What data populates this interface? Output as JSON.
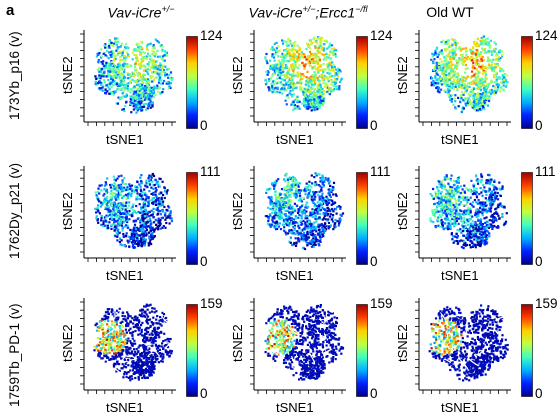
{
  "panel_label": "a",
  "columns": [
    {
      "title": "Vav-iCre",
      "sup": "+/−",
      "title2": "",
      "sup2": "",
      "italic": true
    },
    {
      "title": "Vav-iCre",
      "sup": "+/−",
      "title2": ";Ercc1",
      "sup2": "−/fl",
      "italic": true
    },
    {
      "title": "Old WT",
      "sup": "",
      "title2": "",
      "sup2": "",
      "italic": false
    }
  ],
  "rows": [
    {
      "marker": "173Yb_p16 (v)",
      "max": "124",
      "min": "0"
    },
    {
      "marker": "1762Dy_p21 (v)",
      "max": "111",
      "min": "0"
    },
    {
      "marker": "1759Tb_PD-1 (v)",
      "max": "159",
      "min": "0"
    }
  ],
  "xlabel": "tSNE1",
  "ylabel": "tSNE2",
  "colors": {
    "colormap": [
      "#00008f",
      "#0020ff",
      "#00b0ff",
      "#40ffc0",
      "#c0ff40",
      "#ffd000",
      "#ff4000",
      "#9f0000"
    ]
  },
  "chart_data": [
    {
      "type": "scatter",
      "row": "173Yb_p16 (v)",
      "column": "Vav-iCre+/−",
      "xlabel": "tSNE1",
      "ylabel": "tSNE2",
      "colorbar_range": [
        0,
        124
      ],
      "intensity": 0.55
    },
    {
      "type": "scatter",
      "row": "173Yb_p16 (v)",
      "column": "Vav-iCre+/−;Ercc1−/fl",
      "xlabel": "tSNE1",
      "ylabel": "tSNE2",
      "colorbar_range": [
        0,
        124
      ],
      "intensity": 0.68
    },
    {
      "type": "scatter",
      "row": "173Yb_p16 (v)",
      "column": "Old WT",
      "xlabel": "tSNE1",
      "ylabel": "tSNE2",
      "colorbar_range": [
        0,
        124
      ],
      "intensity": 0.7
    },
    {
      "type": "scatter",
      "row": "1762Dy_p21 (v)",
      "column": "Vav-iCre+/−",
      "xlabel": "tSNE1",
      "ylabel": "tSNE2",
      "colorbar_range": [
        0,
        111
      ],
      "intensity": 0.32
    },
    {
      "type": "scatter",
      "row": "1762Dy_p21 (v)",
      "column": "Vav-iCre+/−;Ercc1−/fl",
      "xlabel": "tSNE1",
      "ylabel": "tSNE2",
      "colorbar_range": [
        0,
        111
      ],
      "intensity": 0.36
    },
    {
      "type": "scatter",
      "row": "1762Dy_p21 (v)",
      "column": "Old WT",
      "xlabel": "tSNE1",
      "ylabel": "tSNE2",
      "colorbar_range": [
        0,
        111
      ],
      "intensity": 0.38
    },
    {
      "type": "scatter",
      "row": "1759Tb_PD-1 (v)",
      "column": "Vav-iCre+/−",
      "xlabel": "tSNE1",
      "ylabel": "tSNE2",
      "colorbar_range": [
        0,
        159
      ],
      "intensity": 0.1
    },
    {
      "type": "scatter",
      "row": "1759Tb_PD-1 (v)",
      "column": "Vav-iCre+/−;Ercc1−/fl",
      "xlabel": "tSNE1",
      "ylabel": "tSNE2",
      "colorbar_range": [
        0,
        159
      ],
      "intensity": 0.1
    },
    {
      "type": "scatter",
      "row": "1759Tb_PD-1 (v)",
      "column": "Old WT",
      "xlabel": "tSNE1",
      "ylabel": "tSNE2",
      "colorbar_range": [
        0,
        159
      ],
      "intensity": 0.12
    }
  ]
}
